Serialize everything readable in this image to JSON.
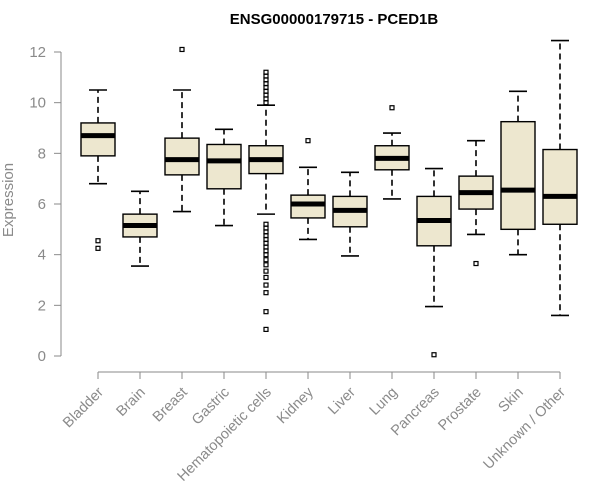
{
  "chart_data": {
    "type": "boxplot",
    "title": "ENSG00000179715 - PCED1B",
    "xlabel": "",
    "ylabel": "Expression",
    "ylim": [
      0,
      12.5
    ],
    "yticks": [
      0,
      2,
      4,
      6,
      8,
      10,
      12
    ],
    "categories": [
      "Bladder",
      "Brain",
      "Breast",
      "Gastric",
      "Hematopoietic cells",
      "Kidney",
      "Liver",
      "Lung",
      "Pancreas",
      "Prostate",
      "Skin",
      "Unknown / Other"
    ],
    "boxes": [
      {
        "name": "Bladder",
        "min": 6.8,
        "q1": 7.9,
        "median": 8.7,
        "q3": 9.2,
        "max": 10.5,
        "outliers": [
          4.55,
          4.25
        ]
      },
      {
        "name": "Brain",
        "min": 3.55,
        "q1": 4.7,
        "median": 5.15,
        "q3": 5.6,
        "max": 6.5,
        "outliers": []
      },
      {
        "name": "Breast",
        "min": 5.7,
        "q1": 7.15,
        "median": 7.75,
        "q3": 8.6,
        "max": 10.5,
        "outliers": [
          12.1
        ]
      },
      {
        "name": "Gastric",
        "min": 5.15,
        "q1": 6.6,
        "median": 7.7,
        "q3": 8.35,
        "max": 8.95,
        "outliers": []
      },
      {
        "name": "Hematopoietic cells",
        "min": 5.6,
        "q1": 7.2,
        "median": 7.75,
        "q3": 8.3,
        "max": 9.9,
        "outliers": [
          10.0,
          10.15,
          10.3,
          10.45,
          10.6,
          10.75,
          10.9,
          11.05,
          11.2,
          1.05,
          1.75,
          2.5,
          2.8,
          3.1,
          3.35,
          3.6,
          3.8,
          4.0,
          4.15,
          4.3,
          4.45,
          4.6,
          4.75,
          4.9,
          5.05,
          5.2
        ]
      },
      {
        "name": "Kidney",
        "min": 4.6,
        "q1": 5.45,
        "median": 6.0,
        "q3": 6.35,
        "max": 7.45,
        "outliers": [
          8.5
        ]
      },
      {
        "name": "Liver",
        "min": 3.95,
        "q1": 5.1,
        "median": 5.75,
        "q3": 6.3,
        "max": 7.25,
        "outliers": []
      },
      {
        "name": "Lung",
        "min": 6.2,
        "q1": 7.35,
        "median": 7.8,
        "q3": 8.3,
        "max": 8.8,
        "outliers": [
          9.8
        ]
      },
      {
        "name": "Pancreas",
        "min": 1.95,
        "q1": 4.35,
        "median": 5.35,
        "q3": 6.3,
        "max": 7.4,
        "outliers": [
          0.05
        ]
      },
      {
        "name": "Prostate",
        "min": 4.8,
        "q1": 5.8,
        "median": 6.45,
        "q3": 7.1,
        "max": 8.5,
        "outliers": [
          3.65
        ]
      },
      {
        "name": "Skin",
        "min": 4.0,
        "q1": 5.0,
        "median": 6.55,
        "q3": 9.25,
        "max": 10.45,
        "outliers": []
      },
      {
        "name": "Unknown / Other",
        "min": 1.6,
        "q1": 5.2,
        "median": 6.3,
        "q3": 8.15,
        "max": 12.45,
        "outliers": []
      }
    ],
    "colors": {
      "box_fill": "#ede7cf",
      "stroke": "#000000",
      "axis": "#8a8a8a"
    },
    "grid": false,
    "legend": "none"
  }
}
